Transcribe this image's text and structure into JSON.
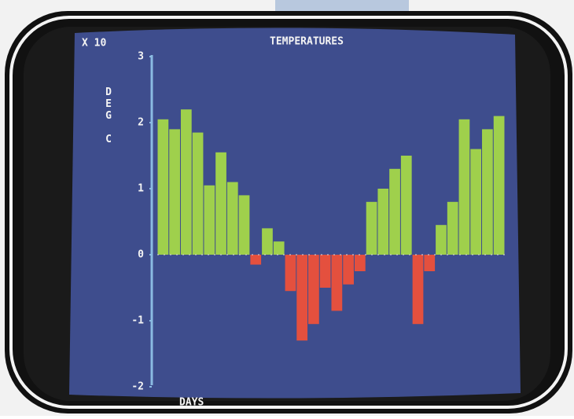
{
  "chart_data": {
    "type": "bar",
    "title": "TEMPERATURES",
    "scale_note": "X 10",
    "y_label": "DEG C",
    "x_label": "DAYS",
    "categories": [
      null,
      null,
      null,
      null,
      null,
      null,
      null,
      null,
      null,
      null,
      null,
      null,
      null,
      null,
      null,
      null,
      null,
      null,
      null,
      null,
      null,
      null,
      null,
      null,
      null,
      null,
      null,
      null,
      null,
      null
    ],
    "values": [
      2.05,
      1.9,
      2.2,
      1.85,
      1.05,
      1.55,
      1.1,
      0.9,
      -0.15,
      0.4,
      0.2,
      -0.55,
      -1.3,
      -1.05,
      -0.5,
      -0.85,
      -0.45,
      -0.25,
      0.8,
      1.0,
      1.3,
      1.5,
      -1.05,
      -0.25,
      0.45,
      0.8,
      2.05,
      1.6,
      1.9,
      2.1
    ],
    "positive_color": "#9fd04c",
    "negative_color": "#e4503e",
    "ylim": [
      -2,
      3
    ],
    "yticks": [
      -2,
      -1,
      0,
      1,
      2,
      3
    ]
  }
}
